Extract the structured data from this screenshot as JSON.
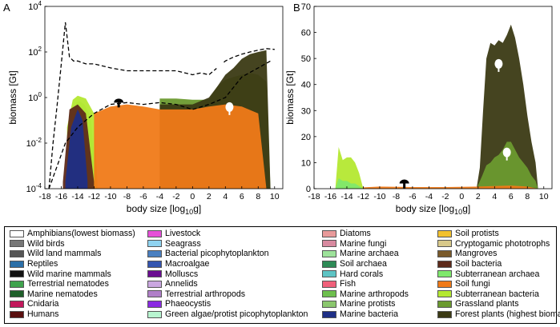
{
  "chart_data": [
    {
      "panel_label": "A",
      "type": "area",
      "xlabel": "body size [log",
      "xlabel_sub": "10",
      "xlabel_end": "g]",
      "ylabel": "biomass [Gt]",
      "scale_y": "log",
      "xlim": [
        -18,
        11
      ],
      "ylim": [
        0.0001,
        10000
      ],
      "x_ticks": [
        "-18",
        "-16",
        "-14",
        "-12",
        "-10",
        "-8",
        "-6",
        "-4",
        "-2",
        "0",
        "2",
        "4",
        "6",
        "8",
        "10"
      ],
      "y_ticks": [
        {
          "base": "10",
          "exp": "-4"
        },
        {
          "base": "10",
          "exp": "-2"
        },
        {
          "base": "10",
          "exp": "0"
        },
        {
          "base": "10",
          "exp": "2"
        },
        {
          "base": "10",
          "exp": "4"
        }
      ],
      "series": [
        {
          "name": "Subterranean archaea",
          "color": "#7fe86c",
          "x": [
            -14.6,
            -14.2,
            -13.8,
            -13.2,
            -12.4,
            -11.8
          ],
          "y": [
            0.01,
            0.6,
            0.7,
            0.5,
            0.15,
            0.0002
          ]
        },
        {
          "name": "Subterranean bacteria",
          "color": "#b4e832",
          "x": [
            -15.3,
            -14.6,
            -14.0,
            -13.0,
            -12.0,
            -11.6
          ],
          "y": [
            0.05,
            0.8,
            1.2,
            0.9,
            0.2,
            0.0002
          ]
        },
        {
          "name": "Soil bacteria",
          "color": "#5e2a1a",
          "x": [
            -15.8,
            -15.0,
            -14.0,
            -13.0,
            -12.0
          ],
          "y": [
            0.0002,
            0.3,
            0.5,
            0.2,
            0.0002
          ]
        },
        {
          "name": "Marine bacteria",
          "color": "#1f2f86",
          "x": [
            -15.5,
            -14.8,
            -14.0,
            -13.4,
            -12.8
          ],
          "y": [
            0.0002,
            0.05,
            0.3,
            0.1,
            0.0002
          ]
        },
        {
          "name": "Grassland plants",
          "color": "#6b9a2f",
          "x": [
            -4,
            -2,
            0,
            2,
            3,
            4,
            5,
            6,
            7,
            8,
            9,
            9.5
          ],
          "y": [
            0.9,
            0.9,
            0.8,
            0.8,
            3,
            6,
            8,
            10,
            12,
            10,
            5,
            0.0001
          ]
        },
        {
          "name": "Forest plants (highest biomass)",
          "color": "#3b3a14",
          "x": [
            -4,
            0,
            2,
            3,
            4,
            5,
            6,
            7,
            8,
            9,
            9.5
          ],
          "y": [
            0.5,
            0.5,
            1,
            3,
            10,
            20,
            50,
            80,
            100,
            120,
            0.0001
          ]
        },
        {
          "name": "Soil fungi",
          "color": "#f07a18",
          "x": [
            -12,
            -10,
            -8,
            -6,
            -4,
            -2,
            0,
            2,
            4,
            6,
            8,
            9
          ],
          "y": [
            0.2,
            0.4,
            0.5,
            0.4,
            0.3,
            0.3,
            0.3,
            0.4,
            0.5,
            0.4,
            0.2,
            0.0001
          ]
        }
      ],
      "total_line": {
        "x": [
          -17.5,
          -17,
          -16.5,
          -16,
          -15.5,
          -15,
          -14.5,
          -14,
          -13,
          -12,
          -10,
          -8,
          -6,
          -4,
          -2,
          0,
          1,
          2,
          3,
          4,
          5,
          6,
          7,
          8,
          9,
          10
        ],
        "y": [
          0.0001,
          0.01,
          0.5,
          30,
          2000,
          60,
          40,
          40,
          30,
          30,
          20,
          15,
          15,
          15,
          15,
          10,
          12,
          10,
          20,
          40,
          60,
          80,
          100,
          120,
          140,
          130
        ]
      },
      "aquatic_line": {
        "x": [
          -17.5,
          -16.5,
          -15.5,
          -14,
          -12,
          -10,
          -8,
          -6,
          -4,
          -2,
          0,
          2,
          4,
          6,
          8,
          9.5
        ],
        "y": [
          0.0001,
          0.001,
          0.01,
          0.05,
          0.2,
          0.5,
          0.6,
          0.5,
          0.6,
          0.5,
          0.3,
          0.5,
          1,
          8,
          20,
          40
        ]
      },
      "icons": [
        {
          "name": "tree",
          "x": 3.3,
          "y": 20
        },
        {
          "name": "mushroom",
          "x": -9.0,
          "y": 0.6
        },
        {
          "name": "tree",
          "x": 4.5,
          "y": 0.3
        }
      ]
    },
    {
      "panel_label": "B",
      "type": "area",
      "xlabel": "body size [log",
      "xlabel_sub": "10",
      "xlabel_end": "g]",
      "ylabel": "biomass [Gt]",
      "xlim": [
        -18,
        11
      ],
      "ylim": [
        0,
        70
      ],
      "x_ticks": [
        "-18",
        "-16",
        "-14",
        "-12",
        "-10",
        "-8",
        "-6",
        "-4",
        "-2",
        "0",
        "2",
        "4",
        "6",
        "8",
        "10"
      ],
      "y_ticks": [
        "0",
        "10",
        "20",
        "30",
        "40",
        "50",
        "60",
        "70"
      ],
      "series": [
        {
          "name": "Forest plants (highest biomass)",
          "color": "#3b3a14",
          "x": [
            1.8,
            2.2,
            2.6,
            3.0,
            3.5,
            4.0,
            4.5,
            5.0,
            5.5,
            6.0,
            6.5,
            7.0,
            7.5,
            8.0,
            8.5,
            9.0,
            9.3
          ],
          "y": [
            0,
            8,
            30,
            50,
            56,
            55,
            57,
            56,
            59,
            63,
            58,
            50,
            40,
            28,
            18,
            10,
            0
          ]
        },
        {
          "name": "Grassland plants",
          "color": "#6b9a2f",
          "x": [
            1.8,
            2.5,
            3.0,
            3.5,
            4.0,
            4.5,
            5.0,
            5.5,
            6.0,
            6.5,
            7.0,
            7.5,
            8.0,
            8.5,
            9.0,
            9.3
          ],
          "y": [
            0,
            5,
            9,
            10,
            12,
            13,
            15,
            18,
            18,
            15,
            12,
            10,
            8,
            5,
            3,
            0
          ]
        },
        {
          "name": "Soil fungi",
          "color": "#f07a18",
          "x": [
            -15,
            -12,
            -10,
            -6,
            -2,
            2,
            6,
            8,
            9.3
          ],
          "y": [
            0,
            0.5,
            0.8,
            0.6,
            0.6,
            0.8,
            1.2,
            0.8,
            0
          ]
        },
        {
          "name": "Subterranean bacteria",
          "color": "#b4e832",
          "x": [
            -15.4,
            -15.0,
            -14.5,
            -14.0,
            -13.5,
            -13.0,
            -12.5,
            -12.0
          ],
          "y": [
            0,
            16,
            11,
            12,
            12,
            10,
            6,
            0
          ]
        },
        {
          "name": "Subterranean archaea",
          "color": "#7fe86c",
          "x": [
            -15.4,
            -15.0,
            -14.5,
            -14.0,
            -13.5,
            -13.0,
            -12.5,
            -12.0
          ],
          "y": [
            0,
            4,
            3,
            3,
            2,
            2,
            1,
            0
          ]
        }
      ],
      "icons": [
        {
          "name": "tree",
          "x": 4.5,
          "y": 47
        },
        {
          "name": "tree",
          "x": 5.5,
          "y": 13
        },
        {
          "name": "mushroom",
          "x": -7.0,
          "y": 2
        }
      ]
    }
  ],
  "legend": {
    "columns": [
      [
        {
          "label": "Amphibians(lowest biomass)",
          "color": "#ffffff"
        },
        {
          "label": "Wild birds",
          "color": "#777777"
        },
        {
          "label": "Wild land mammals",
          "color": "#555555"
        },
        {
          "label": "Reptiles",
          "color": "#2a6fa8"
        },
        {
          "label": "Wild marine mammals",
          "color": "#111111"
        },
        {
          "label": "Terrestrial nematodes",
          "color": "#3fa34d"
        },
        {
          "label": "Marine nematodes",
          "color": "#1f5f2a"
        },
        {
          "label": "Cnidaria",
          "color": "#c2185b"
        },
        {
          "label": "Humans",
          "color": "#5a0f0f"
        }
      ],
      [
        {
          "label": "Livestock",
          "color": "#e64fd8"
        },
        {
          "label": "Seagrass",
          "color": "#8fd3f0"
        },
        {
          "label": "Bacterial picophytoplankton",
          "color": "#4a7fc0"
        },
        {
          "label": "Macroalgae",
          "color": "#3455b0"
        },
        {
          "label": "Molluscs",
          "color": "#6a0d91"
        },
        {
          "label": "Annelids",
          "color": "#caa7e0"
        },
        {
          "label": "Terrestrial arthropods",
          "color": "#b07fc8"
        },
        {
          "label": "Phaeocystis",
          "color": "#8a2be2"
        },
        {
          "label": "Green algae/protist picophytoplankton",
          "color": "#b8f5d0"
        }
      ],
      [
        {
          "label": "Diatoms",
          "color": "#e89a9a"
        },
        {
          "label": "Marine fungi",
          "color": "#d88aa0"
        },
        {
          "label": "Marine archaea",
          "color": "#9de29a"
        },
        {
          "label": "Soil archaea",
          "color": "#2e8b57"
        },
        {
          "label": "Hard corals",
          "color": "#5ec4c4"
        },
        {
          "label": "Fish",
          "color": "#f0607a"
        },
        {
          "label": "Marine arthropods",
          "color": "#6ebf4e"
        },
        {
          "label": "Marine protists",
          "color": "#8bc76e"
        },
        {
          "label": "Marine bacteria",
          "color": "#1f2f86"
        }
      ],
      [
        {
          "label": "Soil protists",
          "color": "#f2c12e"
        },
        {
          "label": "Cryptogamic phototrophs",
          "color": "#d8c98a"
        },
        {
          "label": "Mangroves",
          "color": "#7a5a2a"
        },
        {
          "label": "Soil bacteria",
          "color": "#5e2a1a"
        },
        {
          "label": "Subterranean archaea",
          "color": "#7fe86c"
        },
        {
          "label": "Soil fungi",
          "color": "#f07a18"
        },
        {
          "label": "Subterranean bacteria",
          "color": "#b4e832"
        },
        {
          "label": "Grassland plants",
          "color": "#6b9a2f"
        },
        {
          "label": "Forest plants (highest biomass)",
          "color": "#3b3a14"
        }
      ]
    ]
  }
}
